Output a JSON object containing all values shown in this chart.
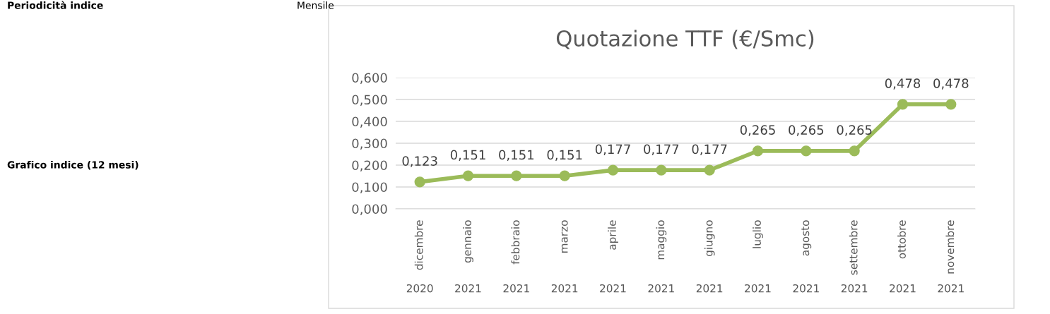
{
  "chart_data": {
    "type": "line",
    "title": "Quotazione TTF (€/Smc)",
    "categories": [
      "dicembre\n2020",
      "gennaio\n2021",
      "febbraio\n2021",
      "marzo\n2021",
      "aprile\n2021",
      "maggio\n2021",
      "giugno\n2021",
      "luglio\n2021",
      "agosto\n2021",
      "settembre\n2021",
      "ottobre\n2021",
      "novembre\n2021"
    ],
    "series": [
      {
        "color": "#9bbb59",
        "values": [
          0.123,
          0.151,
          0.151,
          0.151,
          0.177,
          0.177,
          0.177,
          0.265,
          0.265,
          0.265,
          0.478,
          0.478
        ],
        "value_labels": [
          "0,123",
          "0,151",
          "0,151",
          "0,151",
          "0,177",
          "0,177",
          "0,177",
          "0,265",
          "0,265",
          "0,265",
          "0,478",
          "0,478"
        ]
      }
    ],
    "ylim": [
      0,
      0.6
    ],
    "yticks": [
      {
        "value": 0,
        "label": "0,000"
      },
      {
        "value": 0.1,
        "label": "0,100"
      },
      {
        "value": 0.2,
        "label": "0,200"
      },
      {
        "value": 0.3,
        "label": "0,300"
      },
      {
        "value": 0.4,
        "label": "0,400"
      },
      {
        "value": 0.5,
        "label": "0,500"
      },
      {
        "value": 0.6,
        "label": "0,600"
      }
    ],
    "grid": "y",
    "marker": "circle",
    "line_style": "solid",
    "legend": false,
    "annotations": [
      "Periodicità indice",
      "Mensile",
      "Grafico indice (12 mesi)"
    ]
  }
}
